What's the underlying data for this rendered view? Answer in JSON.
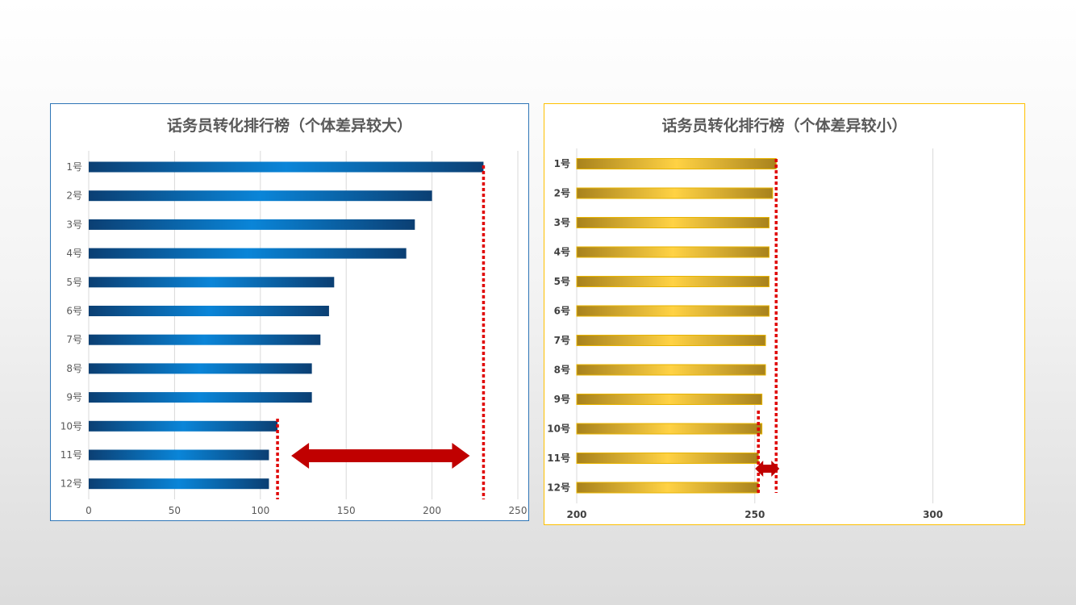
{
  "chart_data": [
    {
      "type": "bar",
      "orientation": "horizontal",
      "title": "话务员转化排行榜（个体差异较大）",
      "categories": [
        "1号",
        "2号",
        "3号",
        "4号",
        "5号",
        "6号",
        "7号",
        "8号",
        "9号",
        "10号",
        "11号",
        "12号"
      ],
      "values": [
        230,
        200,
        190,
        185,
        143,
        140,
        135,
        130,
        130,
        110,
        105,
        105
      ],
      "xlim": [
        0,
        250
      ],
      "x_ticks": [
        "0",
        "50",
        "100",
        "150",
        "200",
        "250"
      ],
      "grid": true,
      "bar_color": "#0070c0",
      "reference_lines": [
        230,
        110
      ],
      "annotation": "double-headed arrow between reference lines"
    },
    {
      "type": "bar",
      "orientation": "horizontal",
      "title": "话务员转化排行榜（个体差异较小）",
      "categories": [
        "1号",
        "2号",
        "3号",
        "4号",
        "5号",
        "6号",
        "7号",
        "8号",
        "9号",
        "10号",
        "11号",
        "12号"
      ],
      "values": [
        256,
        255,
        254,
        254,
        254,
        254,
        253,
        253,
        252,
        252,
        251,
        251
      ],
      "xlim": [
        200,
        325
      ],
      "x_ticks": [
        "200",
        "250",
        "300"
      ],
      "grid": true,
      "bar_color": "#ffc000",
      "reference_lines": [
        256,
        251
      ],
      "annotation": "double-headed arrow between reference lines"
    }
  ],
  "colors": {
    "accent_red": "#c00000",
    "dotted_red": "#e00000",
    "left_border": "#2e75b6",
    "right_border": "#ffc000"
  }
}
